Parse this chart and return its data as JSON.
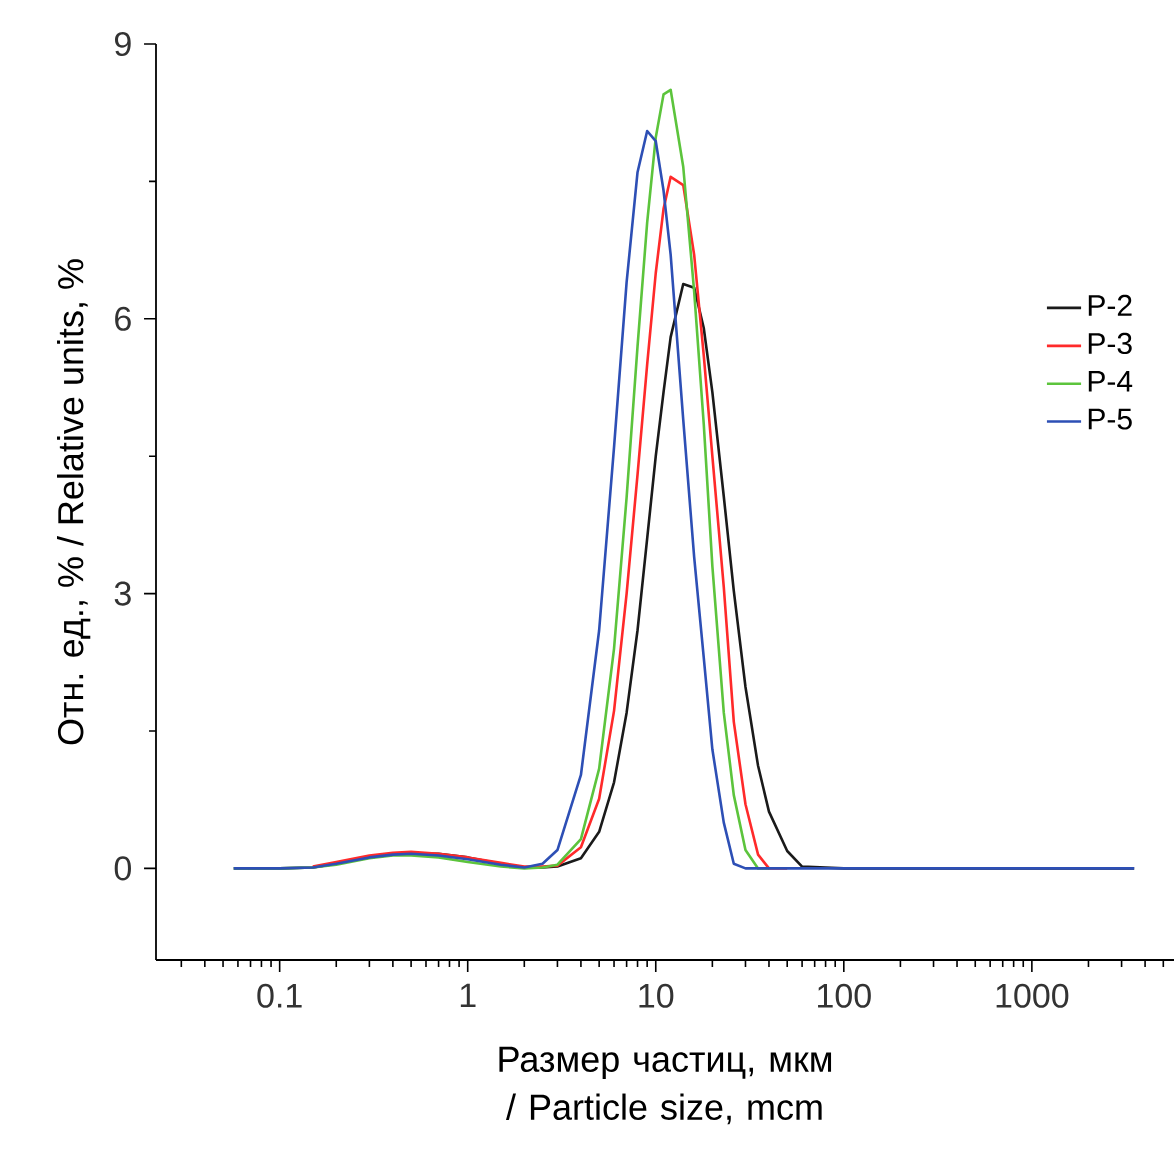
{
  "chart_data": {
    "type": "line",
    "xlabel": "Размер частиц, мкм / Particle size, mcm",
    "ylabel": "Отн. ед., % / Relative units, %",
    "log": "x",
    "xlim": [
      0.022,
      5700
    ],
    "xticks": [
      0.1,
      1,
      10,
      100,
      1000
    ],
    "ylim": [
      -1,
      9
    ],
    "yticks": [
      0,
      3,
      6,
      9
    ],
    "grid": false,
    "legend": "right",
    "marker": "none",
    "line_style": "solid",
    "x": [
      0.057,
      0.1,
      0.15,
      0.2,
      0.3,
      0.4,
      0.5,
      0.7,
      1,
      1.5,
      2,
      2.5,
      3,
      4,
      5,
      6,
      7,
      8,
      9,
      10,
      11,
      12,
      14,
      16,
      18,
      20,
      23,
      26,
      30,
      35,
      40,
      50,
      60,
      100,
      3500
    ],
    "series": [
      {
        "name": "P-2",
        "color": "#1a1a1a",
        "values": [
          0,
          0,
          0.01,
          0.05,
          0.12,
          0.15,
          0.16,
          0.16,
          0.12,
          0.05,
          0.01,
          0.01,
          0.02,
          0.11,
          0.4,
          0.94,
          1.7,
          2.6,
          3.6,
          4.5,
          5.2,
          5.8,
          6.38,
          6.34,
          5.9,
          5.2,
          4.06,
          3.03,
          1.98,
          1.12,
          0.62,
          0.19,
          0.02,
          0,
          0
        ]
      },
      {
        "name": "P-3",
        "color": "#ff2a2a",
        "values": [
          null,
          null,
          0.02,
          0.07,
          0.14,
          0.17,
          0.18,
          0.16,
          0.12,
          0.06,
          0.02,
          0.02,
          0.03,
          0.23,
          0.76,
          1.72,
          3.0,
          4.3,
          5.5,
          6.5,
          7.2,
          7.55,
          7.46,
          6.7,
          5.6,
          4.5,
          3.07,
          1.6,
          0.7,
          0.15,
          0,
          0,
          null,
          null,
          null
        ]
      },
      {
        "name": "P-4",
        "color": "#5cc43c",
        "values": [
          0,
          0,
          0.01,
          0.04,
          0.11,
          0.14,
          0.14,
          0.12,
          0.07,
          0.02,
          0,
          0.01,
          0.04,
          0.32,
          1.09,
          2.4,
          4.05,
          5.7,
          7.05,
          7.98,
          8.45,
          8.5,
          7.66,
          6.3,
          4.85,
          3.3,
          1.7,
          0.8,
          0.2,
          0,
          0,
          null,
          null,
          null,
          null
        ]
      },
      {
        "name": "P-5",
        "color": "#2d4fb5",
        "values": [
          0,
          0,
          0.01,
          0.05,
          0.12,
          0.15,
          0.16,
          0.14,
          0.1,
          0.04,
          0.01,
          0.05,
          0.2,
          1.02,
          2.6,
          4.6,
          6.4,
          7.6,
          8.05,
          7.94,
          7.4,
          6.7,
          4.9,
          3.4,
          2.3,
          1.3,
          0.5,
          0.05,
          0,
          0,
          0,
          0,
          0,
          0,
          0
        ]
      }
    ]
  }
}
